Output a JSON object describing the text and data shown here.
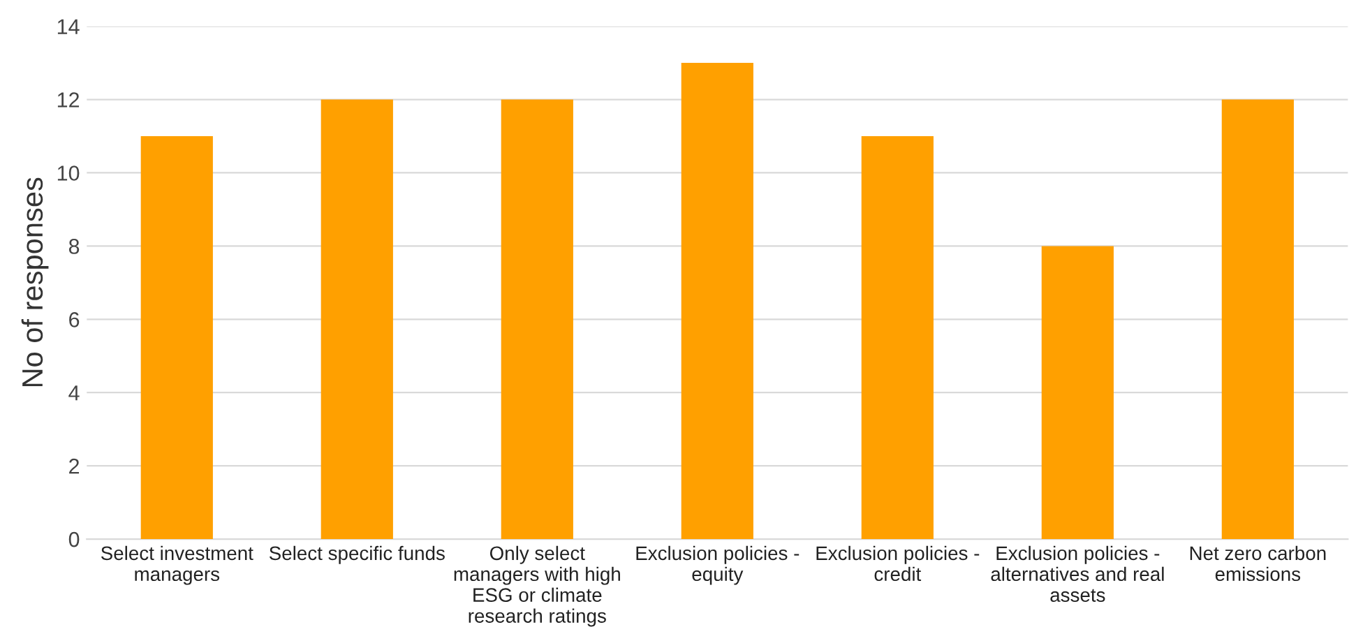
{
  "chart_data": {
    "type": "bar",
    "categories": [
      "Select investment\nmanagers",
      "Select specific funds",
      "Only select\nmanagers with high\nESG or climate\nresearch ratings",
      "Exclusion policies -\nequity",
      "Exclusion policies -\ncredit",
      "Exclusion policies -\nalternatives and real\nassets",
      "Net zero carbon\nemissions"
    ],
    "values": [
      11,
      12,
      12,
      13,
      11,
      8,
      12
    ],
    "color": "#ffa000",
    "ylabel": "No of responses",
    "ylim": [
      0,
      14
    ],
    "yticks": [
      0,
      2,
      4,
      6,
      8,
      10,
      12,
      14
    ],
    "grid": "y",
    "legend": false
  }
}
